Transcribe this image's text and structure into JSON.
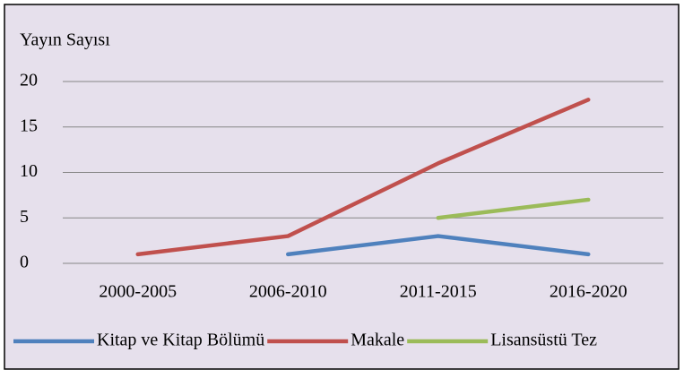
{
  "chart_data": {
    "type": "line",
    "y_axis_label": "Yayın Sayısı",
    "categories": [
      "2000-2005",
      "2006-2010",
      "2011-2015",
      "2016-2020"
    ],
    "series": [
      {
        "name": "Kitap ve Kitap Bölümü",
        "color": "#4f81bd",
        "values": [
          null,
          1,
          3,
          1
        ]
      },
      {
        "name": "Makale",
        "color": "#c0504d",
        "values": [
          1,
          3,
          11,
          18
        ]
      },
      {
        "name": "Lisansüstü Tez",
        "color": "#9bbb59",
        "values": [
          null,
          null,
          5,
          7
        ]
      }
    ],
    "ylim": [
      0,
      20
    ],
    "yticks": [
      0,
      5,
      10,
      15,
      20
    ],
    "grid": true,
    "legend": "bottom"
  }
}
